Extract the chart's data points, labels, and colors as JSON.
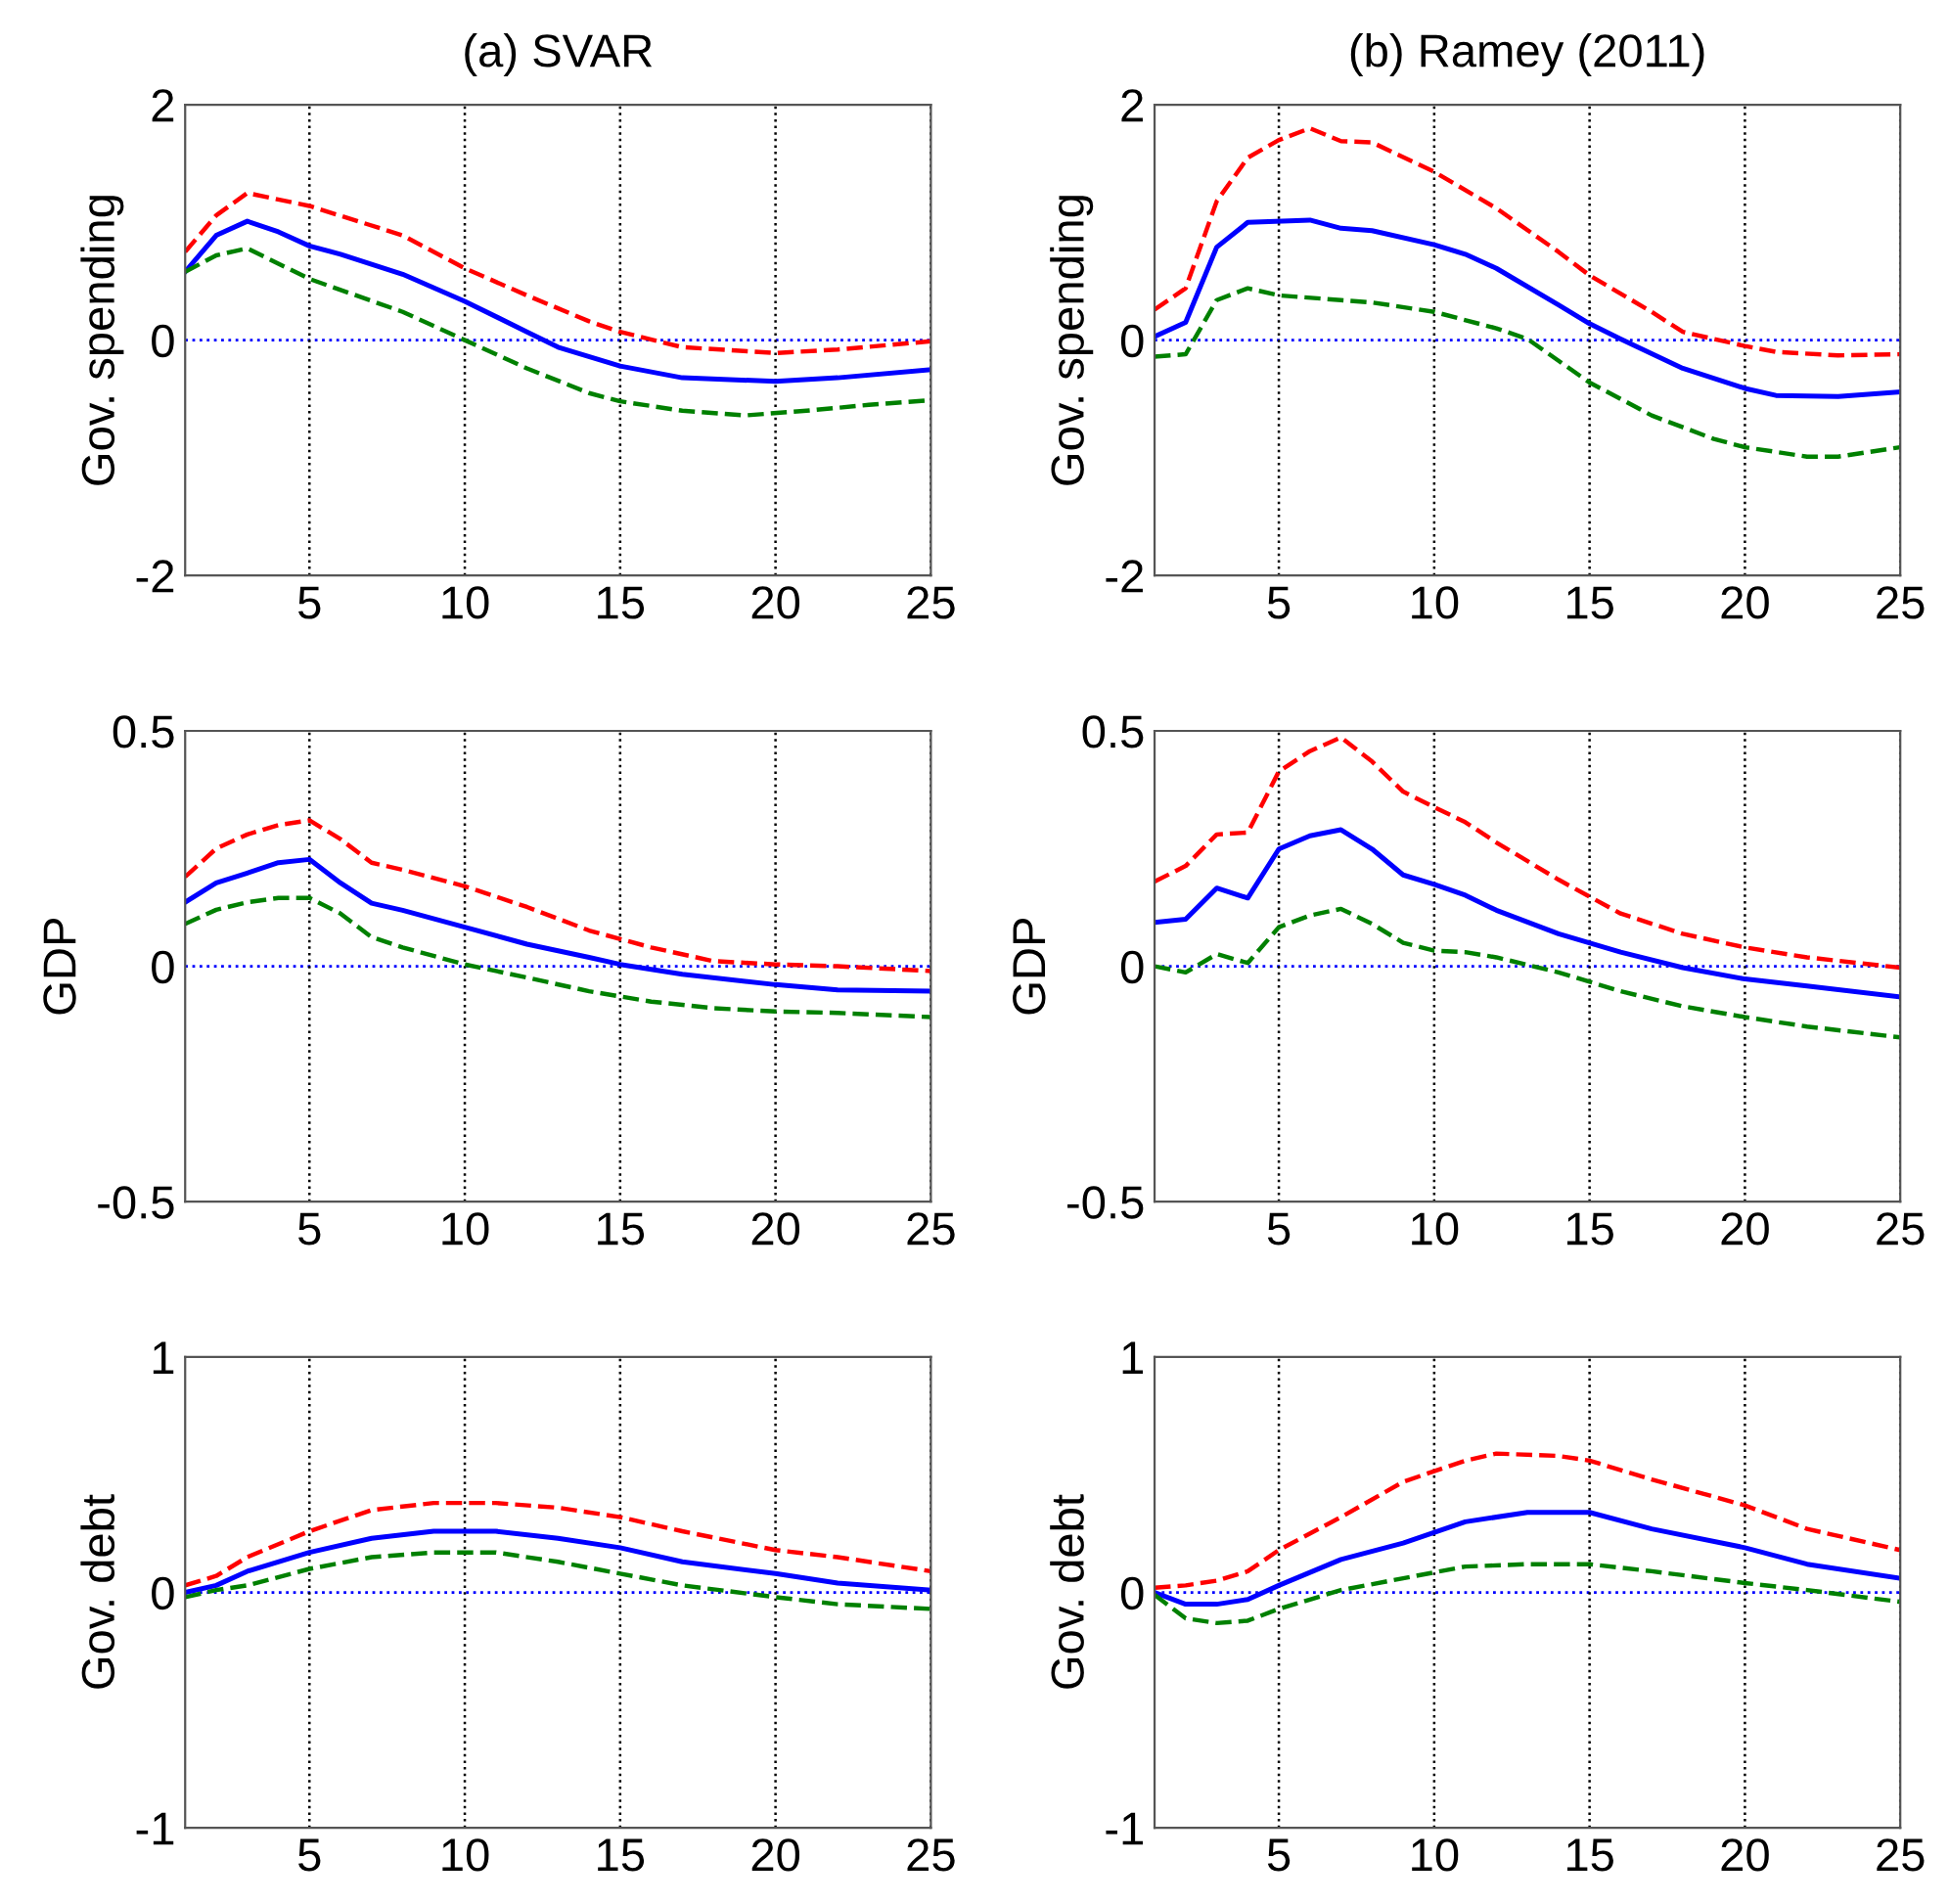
{
  "chart_data": [
    {
      "type": "line",
      "title": "(a) SVAR",
      "ylabel": "Gov. spending",
      "xlim": [
        1,
        25
      ],
      "xticks": [
        5,
        10,
        15,
        20,
        25
      ],
      "ylim": [
        -2,
        2
      ],
      "yticks": [
        -2,
        0,
        2
      ],
      "grid": "x",
      "ref_lines": [
        {
          "axis": "y",
          "value": 0,
          "color": "#0000ff",
          "line_style": "dotted"
        }
      ],
      "series": [
        {
          "color": "#ff0000",
          "line_style": "dashed",
          "x": [
            1,
            2,
            3,
            5,
            8,
            10,
            12,
            14,
            15,
            17,
            20,
            22,
            25
          ],
          "values": [
            0.75,
            1.06,
            1.25,
            1.14,
            0.89,
            0.61,
            0.38,
            0.16,
            0.07,
            -0.06,
            -0.11,
            -0.08,
            -0.01
          ]
        },
        {
          "color": "#0000ff",
          "line_style": "solid",
          "x": [
            1,
            2,
            3,
            4,
            5,
            6,
            8,
            10,
            12,
            13,
            15,
            17,
            20,
            22,
            25
          ],
          "values": [
            0.58,
            0.89,
            1.01,
            0.92,
            0.8,
            0.73,
            0.56,
            0.33,
            0.07,
            -0.06,
            -0.22,
            -0.32,
            -0.35,
            -0.32,
            -0.25
          ]
        },
        {
          "color": "#008000",
          "line_style": "dashed",
          "x": [
            1,
            2,
            3,
            5,
            8,
            10,
            12,
            14,
            15,
            17,
            19,
            21,
            23,
            25
          ],
          "values": [
            0.58,
            0.72,
            0.78,
            0.52,
            0.24,
            0,
            -0.24,
            -0.45,
            -0.52,
            -0.6,
            -0.64,
            -0.6,
            -0.55,
            -0.51
          ]
        }
      ]
    },
    {
      "type": "line",
      "title": "(b) Ramey (2011)",
      "ylabel": "Gov. spending",
      "xlim": [
        1,
        25
      ],
      "xticks": [
        5,
        10,
        15,
        20,
        25
      ],
      "ylim": [
        -2,
        2
      ],
      "yticks": [
        -2,
        0,
        2
      ],
      "grid": "x",
      "ref_lines": [
        {
          "axis": "y",
          "value": 0,
          "color": "#0000ff",
          "line_style": "dotted"
        }
      ],
      "series": [
        {
          "color": "#ff0000",
          "line_style": "dashed",
          "x": [
            1,
            2,
            3,
            4,
            5,
            6,
            7,
            8,
            10,
            12,
            14,
            15,
            17,
            18,
            20,
            21,
            23,
            25
          ],
          "values": [
            0.26,
            0.44,
            1.18,
            1.55,
            1.7,
            1.8,
            1.69,
            1.68,
            1.43,
            1.12,
            0.75,
            0.55,
            0.24,
            0.07,
            -0.05,
            -0.1,
            -0.13,
            -0.12
          ]
        },
        {
          "color": "#0000ff",
          "line_style": "solid",
          "x": [
            1,
            2,
            3,
            4,
            6,
            7,
            8,
            10,
            11,
            12,
            14,
            15,
            16,
            18,
            20,
            21,
            23,
            25
          ],
          "values": [
            0.03,
            0.15,
            0.79,
            1.0,
            1.02,
            0.95,
            0.93,
            0.81,
            0.73,
            0.61,
            0.3,
            0.14,
            0.01,
            -0.24,
            -0.41,
            -0.47,
            -0.48,
            -0.44
          ]
        },
        {
          "color": "#008000",
          "line_style": "dashed",
          "x": [
            1,
            2,
            3,
            4,
            5,
            7,
            8,
            10,
            12,
            13,
            15,
            17,
            19,
            20,
            22,
            23,
            25
          ],
          "values": [
            -0.14,
            -0.12,
            0.34,
            0.44,
            0.38,
            0.34,
            0.32,
            0.24,
            0.1,
            0.01,
            -0.36,
            -0.64,
            -0.84,
            -0.91,
            -0.99,
            -0.99,
            -0.91
          ]
        }
      ]
    },
    {
      "type": "line",
      "ylabel": "GDP",
      "xlim": [
        1,
        25
      ],
      "xticks": [
        5,
        10,
        15,
        20,
        25
      ],
      "ylim": [
        -0.5,
        0.5
      ],
      "yticks": [
        -0.5,
        0,
        0.5
      ],
      "grid": "x",
      "ref_lines": [
        {
          "axis": "y",
          "value": 0,
          "color": "#0000ff",
          "line_style": "dotted"
        }
      ],
      "series": [
        {
          "color": "#ff0000",
          "line_style": "dashed",
          "x": [
            1,
            2,
            3,
            4,
            5,
            6,
            7,
            8,
            10,
            12,
            14,
            16,
            18,
            20,
            22,
            25
          ],
          "values": [
            0.19,
            0.25,
            0.28,
            0.3,
            0.31,
            0.27,
            0.22,
            0.205,
            0.17,
            0.126,
            0.076,
            0.04,
            0.011,
            0.004,
            0,
            -0.01
          ]
        },
        {
          "color": "#0000ff",
          "line_style": "solid",
          "x": [
            1,
            2,
            3,
            4,
            5,
            6,
            7,
            8,
            10,
            12,
            14,
            15,
            17,
            20,
            22,
            25
          ],
          "values": [
            0.136,
            0.177,
            0.198,
            0.22,
            0.227,
            0.177,
            0.134,
            0.119,
            0.083,
            0.047,
            0.019,
            0.004,
            -0.017,
            -0.039,
            -0.05,
            -0.053
          ]
        },
        {
          "color": "#008000",
          "line_style": "dashed",
          "x": [
            1,
            2,
            3,
            4,
            5,
            6,
            7,
            8,
            10,
            12,
            14,
            16,
            18,
            20,
            22,
            25
          ],
          "values": [
            0.09,
            0.12,
            0.136,
            0.145,
            0.145,
            0.112,
            0.062,
            0.04,
            0.004,
            -0.024,
            -0.053,
            -0.075,
            -0.089,
            -0.096,
            -0.099,
            -0.108
          ]
        }
      ]
    },
    {
      "type": "line",
      "ylabel": "GDP",
      "xlim": [
        1,
        25
      ],
      "xticks": [
        5,
        10,
        15,
        20,
        25
      ],
      "ylim": [
        -0.5,
        0.5
      ],
      "yticks": [
        -0.5,
        0,
        0.5
      ],
      "grid": "x",
      "ref_lines": [
        {
          "axis": "y",
          "value": 0,
          "color": "#0000ff",
          "line_style": "dotted"
        }
      ],
      "series": [
        {
          "color": "#ff0000",
          "line_style": "dashed",
          "x": [
            1,
            2,
            3,
            4,
            5,
            6,
            7,
            8,
            9,
            10,
            11,
            12,
            14,
            16,
            18,
            20,
            22,
            25
          ],
          "values": [
            0.18,
            0.213,
            0.28,
            0.284,
            0.414,
            0.457,
            0.486,
            0.435,
            0.371,
            0.338,
            0.306,
            0.263,
            0.184,
            0.112,
            0.069,
            0.04,
            0.019,
            -0.003
          ]
        },
        {
          "color": "#0000ff",
          "line_style": "solid",
          "x": [
            1,
            2,
            3,
            4,
            5,
            6,
            7,
            8,
            9,
            10,
            11,
            12,
            14,
            16,
            18,
            20,
            22,
            25
          ],
          "values": [
            0.093,
            0.1,
            0.166,
            0.145,
            0.249,
            0.277,
            0.29,
            0.249,
            0.194,
            0.174,
            0.151,
            0.119,
            0.069,
            0.03,
            -0.003,
            -0.027,
            -0.042,
            -0.065
          ]
        },
        {
          "color": "#008000",
          "line_style": "dashed",
          "x": [
            1,
            2,
            3,
            4,
            5,
            6,
            7,
            8,
            9,
            10,
            11,
            12,
            14,
            16,
            18,
            20,
            22,
            25
          ],
          "values": [
            0,
            -0.013,
            0.026,
            0.007,
            0.083,
            0.108,
            0.122,
            0.09,
            0.05,
            0.033,
            0.03,
            0.019,
            -0.013,
            -0.053,
            -0.085,
            -0.108,
            -0.128,
            -0.151
          ]
        }
      ]
    },
    {
      "type": "line",
      "ylabel": "Gov. debt",
      "xlim": [
        1,
        25
      ],
      "xticks": [
        5,
        10,
        15,
        20,
        25
      ],
      "ylim": [
        -1,
        1
      ],
      "yticks": [
        -1,
        0,
        1
      ],
      "grid": "x",
      "ref_lines": [
        {
          "axis": "y",
          "value": 0,
          "color": "#0000ff",
          "line_style": "dotted"
        }
      ],
      "series": [
        {
          "color": "#ff0000",
          "line_style": "dashed",
          "x": [
            1,
            2,
            3,
            5,
            7,
            9,
            11,
            13,
            15,
            17,
            20,
            22,
            25
          ],
          "values": [
            0.03,
            0.07,
            0.15,
            0.26,
            0.35,
            0.38,
            0.38,
            0.36,
            0.32,
            0.26,
            0.18,
            0.15,
            0.09
          ]
        },
        {
          "color": "#0000ff",
          "line_style": "solid",
          "x": [
            1,
            2,
            3,
            5,
            7,
            9,
            11,
            13,
            15,
            17,
            20,
            22,
            25
          ],
          "values": [
            0,
            0.03,
            0.09,
            0.17,
            0.23,
            0.26,
            0.26,
            0.23,
            0.19,
            0.13,
            0.08,
            0.04,
            0.01
          ]
        },
        {
          "color": "#008000",
          "line_style": "dashed",
          "x": [
            1,
            2,
            3,
            5,
            7,
            9,
            11,
            13,
            15,
            17,
            20,
            22,
            25
          ],
          "values": [
            -0.02,
            0.01,
            0.03,
            0.1,
            0.15,
            0.17,
            0.17,
            0.13,
            0.08,
            0.03,
            -0.02,
            -0.05,
            -0.07
          ]
        }
      ]
    },
    {
      "type": "line",
      "ylabel": "Gov. debt",
      "xlim": [
        1,
        25
      ],
      "xticks": [
        5,
        10,
        15,
        20,
        25
      ],
      "ylim": [
        -1,
        1
      ],
      "yticks": [
        -1,
        0,
        1
      ],
      "grid": "x",
      "ref_lines": [
        {
          "axis": "y",
          "value": 0,
          "color": "#0000ff",
          "line_style": "dotted"
        }
      ],
      "series": [
        {
          "color": "#ff0000",
          "line_style": "dashed",
          "x": [
            1,
            2,
            3,
            4,
            5,
            7,
            9,
            11,
            12,
            14,
            15,
            17,
            20,
            22,
            25
          ],
          "values": [
            0.02,
            0.03,
            0.05,
            0.09,
            0.18,
            0.32,
            0.47,
            0.56,
            0.59,
            0.58,
            0.56,
            0.48,
            0.37,
            0.27,
            0.18
          ]
        },
        {
          "color": "#0000ff",
          "line_style": "solid",
          "x": [
            1,
            2,
            3,
            4,
            5,
            7,
            9,
            11,
            13,
            15,
            17,
            20,
            22,
            25
          ],
          "values": [
            0,
            -0.05,
            -0.05,
            -0.03,
            0.03,
            0.14,
            0.21,
            0.3,
            0.34,
            0.34,
            0.27,
            0.19,
            0.12,
            0.06
          ]
        },
        {
          "color": "#008000",
          "line_style": "dashed",
          "x": [
            1,
            2,
            3,
            4,
            5,
            7,
            9,
            11,
            13,
            15,
            17,
            20,
            22,
            25
          ],
          "values": [
            -0.01,
            -0.11,
            -0.13,
            -0.12,
            -0.07,
            0.01,
            0.06,
            0.11,
            0.12,
            0.12,
            0.09,
            0.04,
            0.01,
            -0.04
          ]
        }
      ]
    }
  ]
}
